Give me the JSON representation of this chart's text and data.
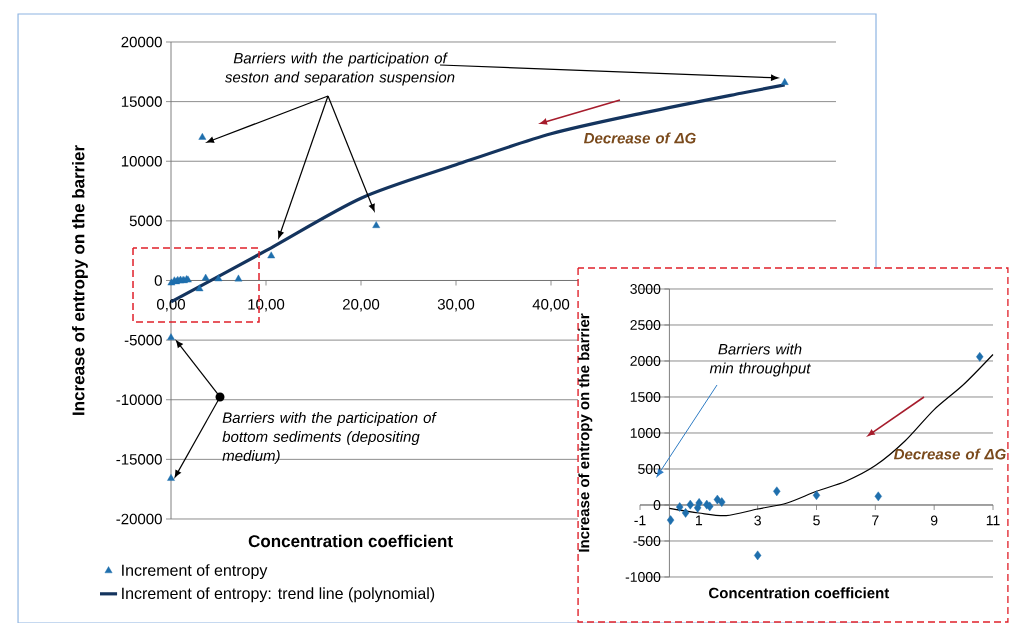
{
  "chart_data": [
    {
      "type": "scatter",
      "xlabel": "Concentration coefficient",
      "ylabel": "Increase of entropy on the barrier",
      "xlim": [
        0,
        70
      ],
      "ylim": [
        -20000,
        20000
      ],
      "xticks": [
        {
          "value": 0,
          "label": "0,00"
        },
        {
          "value": 10,
          "label": "10,00"
        },
        {
          "value": 20,
          "label": "20,00"
        },
        {
          "value": 30,
          "label": "30,00"
        },
        {
          "value": 40,
          "label": "40,00"
        }
      ],
      "yticks": [
        -20000,
        -15000,
        -10000,
        -5000,
        0,
        5000,
        10000,
        15000,
        20000
      ],
      "grid": "y",
      "legend": "bottom",
      "annotations": [
        "Barriers with the participation of seston and separation suspension",
        "Decrease of  ΔG",
        "Barriers with the participation of bottom sediments (depositing medium)"
      ],
      "series": [
        {
          "name": "Increment of entropy",
          "color": "#1f6fad",
          "marker": "triangle",
          "x": [
            0.04,
            0.35,
            0.55,
            0.71,
            0.96,
            1.01,
            1.27,
            1.37,
            1.63,
            1.78,
            3.0,
            3.65,
            5.0,
            7.1,
            10.55,
            3.3,
            21.6,
            64.6,
            0,
            0
          ],
          "values": [
            -210,
            -28,
            -110,
            5,
            -40,
            28,
            5,
            -20,
            75,
            40,
            -700,
            190,
            135,
            120,
            2058,
            12000,
            4600,
            16600,
            -4800,
            -16600
          ]
        },
        {
          "name": "Increment of entropy: trend line (polynomial)",
          "type": "line",
          "color": "#14345e",
          "x": [
            0,
            10,
            20,
            30,
            40,
            50,
            60,
            64.6
          ],
          "values": [
            -1800,
            2500,
            6900,
            9700,
            12300,
            14100,
            15700,
            16400
          ]
        }
      ]
    },
    {
      "type": "scatter",
      "xlabel": "Concentration coefficient",
      "ylabel": "Increase of entropy on the barrier",
      "xlim": [
        -1,
        11
      ],
      "ylim": [
        -1000,
        3000
      ],
      "xticks": [
        -1,
        1,
        3,
        5,
        7,
        9,
        11
      ],
      "yticks": [
        -1000,
        -500,
        0,
        500,
        1000,
        1500,
        2000,
        2500,
        3000
      ],
      "grid": "y",
      "annotations": [
        "Barriers with min throughput",
        "Decrease of  ΔG"
      ],
      "series": [
        {
          "color": "#1f6fad",
          "marker": "diamond",
          "x": [
            0.04,
            0.35,
            0.55,
            0.71,
            0.96,
            1.01,
            1.27,
            1.37,
            1.63,
            1.78,
            3.0,
            3.65,
            5.0,
            7.1,
            10.55
          ],
          "values": [
            -210,
            -28,
            -110,
            5,
            -40,
            28,
            5,
            -20,
            75,
            40,
            -700,
            190,
            135,
            120,
            2058
          ]
        },
        {
          "type": "line",
          "color": "#000000",
          "x": [
            0,
            1,
            1.93,
            3,
            4,
            5,
            6,
            7,
            8,
            9,
            10,
            11
          ],
          "values": [
            -46,
            -111,
            -148,
            -56,
            28,
            190,
            330,
            547,
            885,
            1325,
            1673,
            2090
          ]
        }
      ]
    }
  ]
}
